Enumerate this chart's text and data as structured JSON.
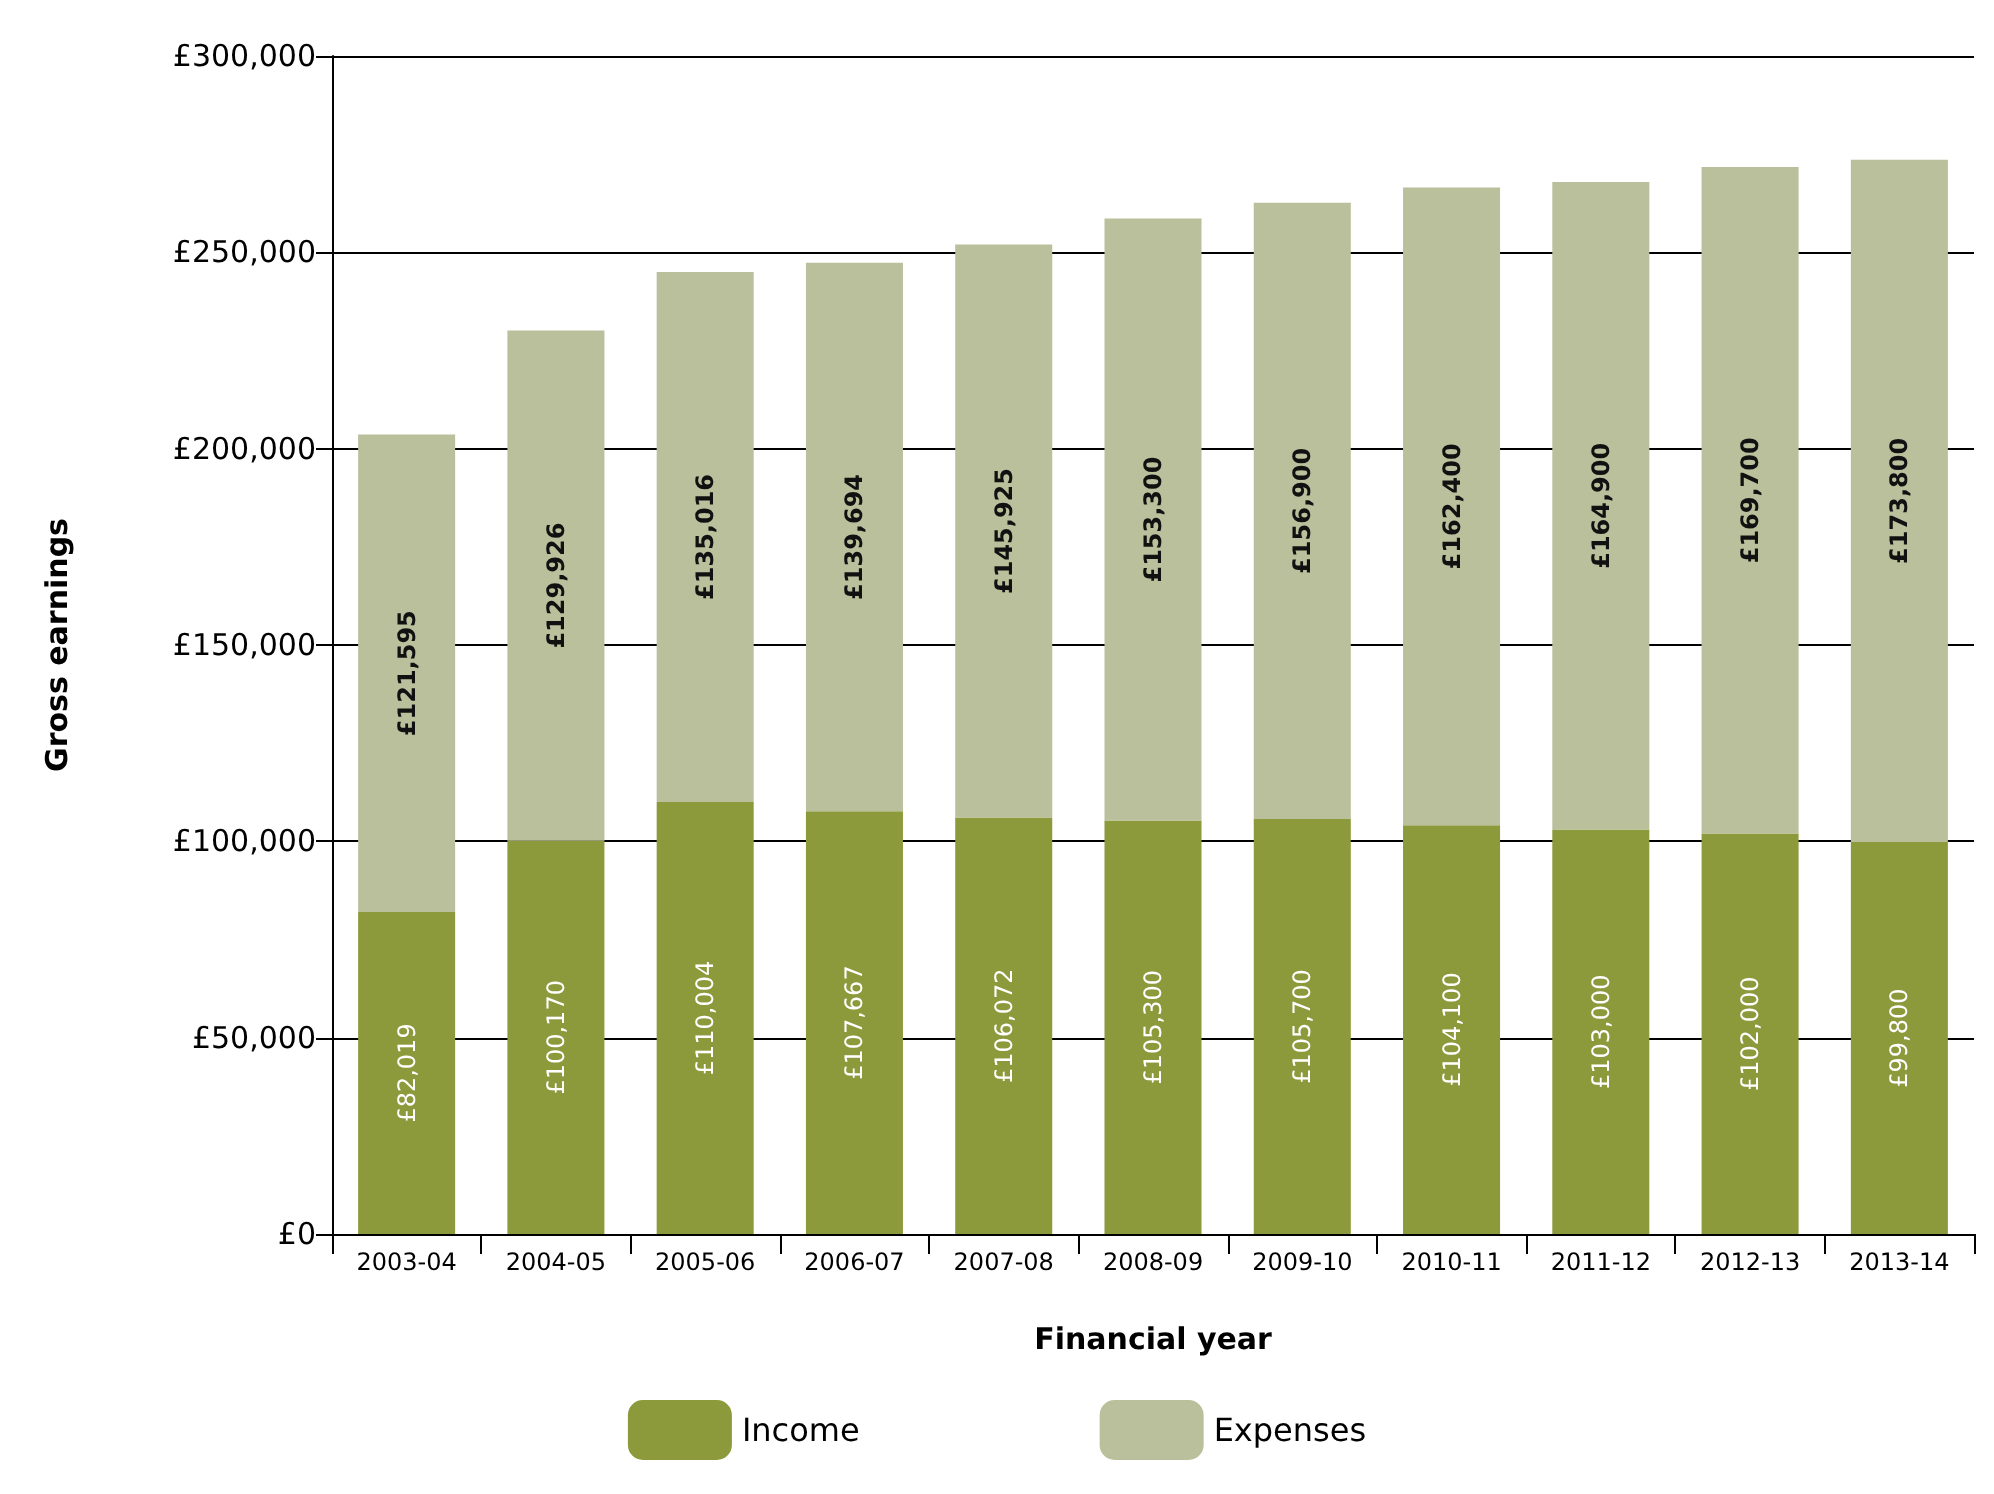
{
  "chart_data": {
    "type": "bar",
    "stacked": true,
    "xlabel": "Financial year",
    "ylabel": "Gross earnings",
    "categories": [
      "2003-04",
      "2004-05",
      "2005-06",
      "2006-07",
      "2007-08",
      "2008-09",
      "2009-10",
      "2010-11",
      "2011-12",
      "2012-13",
      "2013-14"
    ],
    "series": [
      {
        "name": "Income",
        "color": "#8c9a3c",
        "values": [
          82019,
          100170,
          110004,
          107667,
          106072,
          105300,
          105700,
          104100,
          103000,
          102000,
          99800
        ],
        "value_labels": [
          "£82,019",
          "£100,170",
          "£110,004",
          "£107,667",
          "£106,072",
          "£105,300",
          "£105,700",
          "£104,100",
          "£103,000",
          "£102,000",
          "£99,800"
        ]
      },
      {
        "name": "Expenses",
        "color": "#b9c09b",
        "values": [
          121595,
          129926,
          135016,
          139694,
          145925,
          153300,
          156900,
          162400,
          164900,
          169700,
          173800
        ],
        "value_labels": [
          "£121,595",
          "£129,926",
          "£135,016",
          "£139,694",
          "£145,925",
          "£153,300",
          "£156,900",
          "£162,400",
          "£164,900",
          "£169,700",
          "£173,800"
        ]
      }
    ],
    "ylim": [
      0,
      300000
    ],
    "yticks": [
      {
        "value": 0,
        "label": "£0"
      },
      {
        "value": 50000,
        "label": "£50,000"
      },
      {
        "value": 100000,
        "label": "£100,000"
      },
      {
        "value": 150000,
        "label": "£150,000"
      },
      {
        "value": 200000,
        "label": "£200,000"
      },
      {
        "value": 250000,
        "label": "£250,000"
      },
      {
        "value": 300000,
        "label": "£300,000"
      }
    ],
    "grid": "y",
    "legend": "bottom"
  }
}
